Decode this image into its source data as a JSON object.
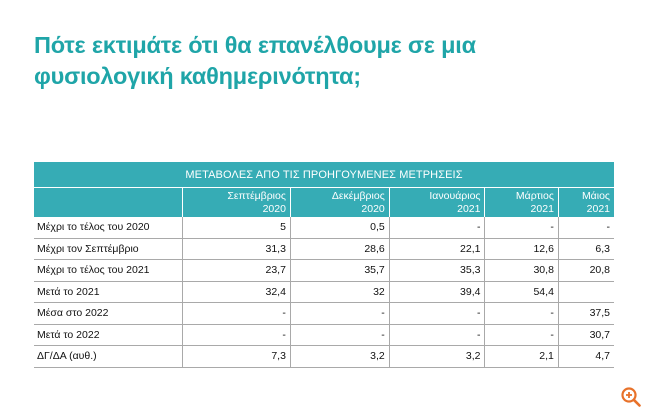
{
  "title_line1": "Πότε εκτιμάτε ότι θα επανέλθουμε σε μια",
  "title_line2": "φυσιολογική καθημερινότητα;",
  "chart_data": {
    "type": "table",
    "banner": "ΜΕΤΑΒΟΛΕΣ ΑΠΟ ΤΙΣ ΠΡΟΗΓΟΥΜΕΝΕΣ ΜΕΤΡΗΣΕΙΣ",
    "columns": [
      {
        "month": "Σεπτέμβριος",
        "year": "2020"
      },
      {
        "month": "Δεκέμβριος",
        "year": "2020"
      },
      {
        "month": "Ιανουάριος",
        "year": "2021"
      },
      {
        "month": "Μάρτιος",
        "year": "2021"
      },
      {
        "month": "Μάιος",
        "year": "2021"
      }
    ],
    "rows": [
      {
        "label": "Μέχρι το τέλος του 2020",
        "values": [
          "5",
          "0,5",
          "-",
          "-",
          "-"
        ]
      },
      {
        "label": "Μέχρι τον Σεπτέμβριο",
        "values": [
          "31,3",
          "28,6",
          "22,1",
          "12,6",
          "6,3"
        ]
      },
      {
        "label": "Μέχρι το τέλος του 2021",
        "values": [
          "23,7",
          "35,7",
          "35,3",
          "30,8",
          "20,8"
        ]
      },
      {
        "label": "Μετά το 2021",
        "values": [
          "32,4",
          "32",
          "39,4",
          "54,4",
          ""
        ]
      },
      {
        "label": "Μέσα στο 2022",
        "values": [
          "-",
          "-",
          "-",
          "-",
          "37,5"
        ]
      },
      {
        "label": "Μετά το 2022",
        "values": [
          "-",
          "-",
          "-",
          "-",
          "30,7"
        ]
      },
      {
        "label": "ΔΓ/ΔΑ (αυθ.)",
        "values": [
          "7,3",
          "3,2",
          "3,2",
          "2,1",
          "4,7"
        ]
      }
    ]
  },
  "colors": {
    "title": "#1fa5a8",
    "header": "#36acb5",
    "zoom_icon": "#e8722a"
  },
  "icons": {
    "zoom": "zoom-in-icon"
  }
}
